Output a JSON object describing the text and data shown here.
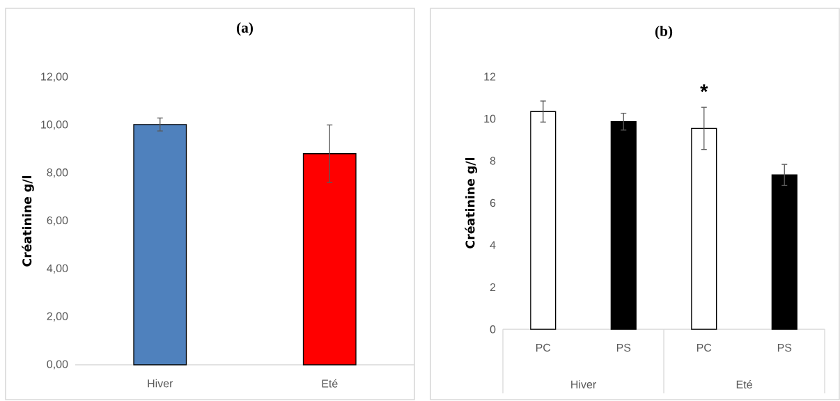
{
  "chart_data": [
    {
      "type": "bar",
      "title": "(a)",
      "ylabel": "Créatinine g/l",
      "categories": [
        "Hiver",
        "Eté"
      ],
      "values": [
        10.03,
        8.81
      ],
      "errors": [
        0.27,
        1.2
      ],
      "colors": [
        "#4f81bd",
        "#ff0000"
      ],
      "ylim": [
        0,
        12
      ],
      "yticks": [
        {
          "value": 0,
          "label": "0,00"
        },
        {
          "value": 2,
          "label": "2,00"
        },
        {
          "value": 4,
          "label": "4,00"
        },
        {
          "value": 6,
          "label": "6,00"
        },
        {
          "value": 8,
          "label": "8,00"
        },
        {
          "value": 10,
          "label": "10,00"
        },
        {
          "value": 12,
          "label": "12,00"
        }
      ]
    },
    {
      "type": "bar",
      "title": "(b)",
      "ylabel": "Créatinine g/l",
      "categories": [
        "PC",
        "PS",
        "PC",
        "PS"
      ],
      "values": [
        10.34,
        9.86,
        9.54,
        7.33
      ],
      "errors": [
        0.5,
        0.4,
        1.0,
        0.5
      ],
      "colors": [
        "#ffffff",
        "#000000",
        "#ffffff",
        "#000000"
      ],
      "value_labels": [
        null,
        null,
        "*",
        null
      ],
      "ylim": [
        0,
        12
      ],
      "yticks": [
        0,
        2,
        4,
        6,
        8,
        10,
        12
      ],
      "annotations": [
        "Hiver",
        "Eté"
      ]
    }
  ]
}
